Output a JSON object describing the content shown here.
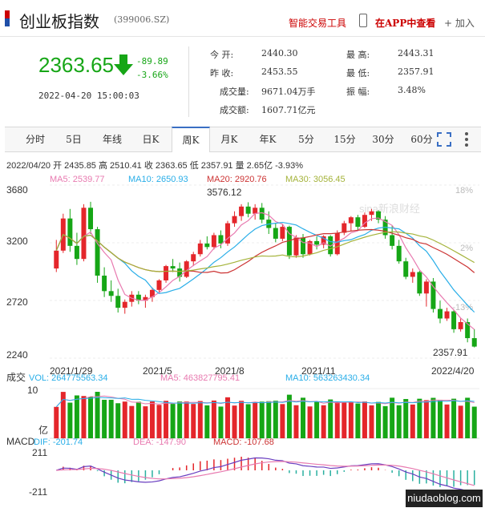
{
  "header": {
    "title": "创业板指数",
    "code": "(399006.SZ)",
    "tool_link": "智能交易工具",
    "app_link": "在APP中查看",
    "add_label": "+ 加入"
  },
  "quote": {
    "price": "2363.65",
    "change": "-89.89",
    "change_pct": "-3.66%",
    "datetime": "2022-04-20 15:00:03",
    "open_label": "今    开:",
    "open": "2440.30",
    "prev_label": "昨    收:",
    "prev_close": "2453.55",
    "vol_label": "成交量:",
    "volume": "9671.04万手",
    "amt_label": "成交额:",
    "amount": "1607.71亿元",
    "high_label": "最    高:",
    "high": "2443.31",
    "low_label": "最    低:",
    "low": "2357.91",
    "amp_label": "振    幅:",
    "amplitude": "3.48%"
  },
  "tabs": [
    "分时",
    "5日",
    "年线",
    "日K",
    "周K",
    "月K",
    "年K",
    "5分",
    "15分",
    "30分",
    "60分"
  ],
  "active_tab": "周K",
  "colors": {
    "up": "#e4262b",
    "down": "#16a616",
    "accent": "#3a6fc4",
    "ma5": "#e87ab0",
    "ma10": "#29aee8",
    "ma20": "#cc3333",
    "ma30": "#a4b33a"
  },
  "chart_data": {
    "type": "candlestick",
    "summary_line": "2022/04/20 开 2435.85 高 2510.41 收 2363.65 低 2357.91 量 2.65亿 -3.93%",
    "legend": [
      {
        "name": "MA5",
        "value": "2539.77"
      },
      {
        "name": "MA10",
        "value": "2650.93"
      },
      {
        "name": "MA20",
        "value": "2920.76"
      },
      {
        "name": "MA30",
        "value": "3056.45"
      }
    ],
    "y_ticks": [
      "3680",
      "3200",
      "2720",
      "2240"
    ],
    "y_range": [
      2240,
      3680
    ],
    "right_ticks": [
      "18%",
      "2%",
      "-13%"
    ],
    "x_ticks": [
      "2021/1/29",
      "2021/5",
      "2021/8",
      "2021/11",
      "2022/4/20"
    ],
    "annotations": {
      "max": "3576.12",
      "min": "2357.91"
    },
    "watermark": "sina新浪财经",
    "candles": [
      [
        3020,
        3260,
        2990,
        3170
      ],
      [
        3170,
        3480,
        3150,
        3440
      ],
      [
        3440,
        3520,
        3160,
        3210
      ],
      [
        3210,
        3320,
        3050,
        3100
      ],
      [
        3100,
        3560,
        3080,
        3530
      ],
      [
        3530,
        3580,
        3310,
        3350
      ],
      [
        3350,
        3370,
        2900,
        2960
      ],
      [
        2960,
        3030,
        2780,
        2830
      ],
      [
        2830,
        2920,
        2740,
        2790
      ],
      [
        2790,
        2850,
        2650,
        2690
      ],
      [
        2690,
        2760,
        2640,
        2740
      ],
      [
        2740,
        2830,
        2700,
        2800
      ],
      [
        2800,
        2830,
        2720,
        2750
      ],
      [
        2750,
        2800,
        2690,
        2780
      ],
      [
        2780,
        2860,
        2740,
        2840
      ],
      [
        2840,
        2930,
        2810,
        2920
      ],
      [
        2920,
        3050,
        2900,
        3040
      ],
      [
        3040,
        3100,
        2990,
        3020
      ],
      [
        3020,
        3070,
        2910,
        2950
      ],
      [
        2950,
        3090,
        2940,
        3080
      ],
      [
        3080,
        3160,
        3040,
        3140
      ],
      [
        3140,
        3260,
        3120,
        3230
      ],
      [
        3230,
        3290,
        3180,
        3200
      ],
      [
        3200,
        3320,
        3180,
        3300
      ],
      [
        3300,
        3340,
        3190,
        3230
      ],
      [
        3230,
        3420,
        3210,
        3400
      ],
      [
        3400,
        3500,
        3370,
        3460
      ],
      [
        3460,
        3560,
        3420,
        3540
      ],
      [
        3540,
        3576,
        3450,
        3480
      ],
      [
        3480,
        3560,
        3430,
        3530
      ],
      [
        3530,
        3570,
        3400,
        3430
      ],
      [
        3430,
        3500,
        3310,
        3360
      ],
      [
        3360,
        3400,
        3240,
        3270
      ],
      [
        3270,
        3390,
        3250,
        3370
      ],
      [
        3370,
        3380,
        3100,
        3130
      ],
      [
        3130,
        3300,
        3110,
        3280
      ],
      [
        3280,
        3310,
        3110,
        3140
      ],
      [
        3140,
        3260,
        3130,
        3250
      ],
      [
        3250,
        3290,
        3180,
        3220
      ],
      [
        3220,
        3300,
        3190,
        3290
      ],
      [
        3290,
        3300,
        3120,
        3140
      ],
      [
        3140,
        3340,
        3130,
        3320
      ],
      [
        3320,
        3420,
        3300,
        3400
      ],
      [
        3400,
        3460,
        3330,
        3450
      ],
      [
        3450,
        3470,
        3340,
        3370
      ],
      [
        3370,
        3490,
        3360,
        3470
      ],
      [
        3470,
        3520,
        3420,
        3500
      ],
      [
        3500,
        3510,
        3400,
        3430
      ],
      [
        3430,
        3460,
        3270,
        3300
      ],
      [
        3300,
        3380,
        3180,
        3210
      ],
      [
        3210,
        3260,
        3060,
        3080
      ],
      [
        3080,
        3110,
        2930,
        2950
      ],
      [
        2950,
        3020,
        2900,
        2990
      ],
      [
        2990,
        3000,
        2790,
        2810
      ],
      [
        2810,
        2930,
        2700,
        2910
      ],
      [
        2910,
        2940,
        2650,
        2680
      ],
      [
        2680,
        2750,
        2560,
        2600
      ],
      [
        2600,
        2690,
        2580,
        2660
      ],
      [
        2660,
        2670,
        2480,
        2510
      ],
      [
        2510,
        2600,
        2490,
        2570
      ],
      [
        2570,
        2600,
        2400,
        2435
      ],
      [
        2435,
        2510,
        2357,
        2364
      ]
    ],
    "volume_ticks": [
      "10",
      "亿"
    ],
    "volume_legend": {
      "vol": "264775563.34",
      "ma5": "463827795.41",
      "ma10": "563263430.34"
    },
    "macd_ticks": [
      "211",
      "-211"
    ],
    "macd_legend": {
      "dif": "-201.74",
      "dea": "-147.90",
      "macd": "-107.68"
    }
  },
  "watermark_site": "niudaoblog.com"
}
